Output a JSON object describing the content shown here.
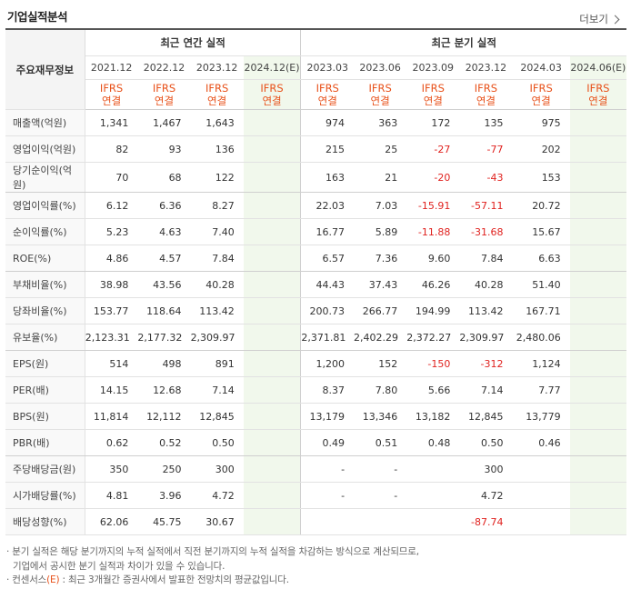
{
  "title": "기업실적분석",
  "more_label": "더보기",
  "header": {
    "corner_label": "주요재무정보",
    "annual_group": "최근 연간 실적",
    "quarter_group": "최근 분기 실적",
    "annual_periods": [
      "2021.12",
      "2022.12",
      "2023.12",
      "2024.12(E)"
    ],
    "quarter_periods": [
      "2023.03",
      "2023.06",
      "2023.09",
      "2023.12",
      "2024.03",
      "2024.06(E)"
    ],
    "ifrs_line1": "IFRS",
    "ifrs_line2": "연결"
  },
  "rows": [
    {
      "label": "매출액(억원)",
      "annual": [
        "1,341",
        "1,467",
        "1,643",
        ""
      ],
      "quarter": [
        "974",
        "363",
        "172",
        "135",
        "975",
        ""
      ]
    },
    {
      "label": "영업이익(억원)",
      "annual": [
        "82",
        "93",
        "136",
        ""
      ],
      "quarter": [
        "215",
        "25",
        "-27",
        "-77",
        "202",
        ""
      ]
    },
    {
      "label": "당기순이익(억원)",
      "annual": [
        "70",
        "68",
        "122",
        ""
      ],
      "quarter": [
        "163",
        "21",
        "-20",
        "-43",
        "153",
        ""
      ]
    },
    {
      "label": "영업이익률(%)",
      "annual": [
        "6.12",
        "6.36",
        "8.27",
        ""
      ],
      "quarter": [
        "22.03",
        "7.03",
        "-15.91",
        "-57.11",
        "20.72",
        ""
      ]
    },
    {
      "label": "순이익률(%)",
      "annual": [
        "5.23",
        "4.63",
        "7.40",
        ""
      ],
      "quarter": [
        "16.77",
        "5.89",
        "-11.88",
        "-31.68",
        "15.67",
        ""
      ]
    },
    {
      "label": "ROE(%)",
      "annual": [
        "4.86",
        "4.57",
        "7.84",
        ""
      ],
      "quarter": [
        "6.57",
        "7.36",
        "9.60",
        "7.84",
        "6.63",
        ""
      ]
    },
    {
      "label": "부채비율(%)",
      "annual": [
        "38.98",
        "43.56",
        "40.28",
        ""
      ],
      "quarter": [
        "44.43",
        "37.43",
        "46.26",
        "40.28",
        "51.40",
        ""
      ]
    },
    {
      "label": "당좌비율(%)",
      "annual": [
        "153.77",
        "118.64",
        "113.42",
        ""
      ],
      "quarter": [
        "200.73",
        "266.77",
        "194.99",
        "113.42",
        "167.71",
        ""
      ]
    },
    {
      "label": "유보율(%)",
      "annual": [
        "2,123.31",
        "2,177.32",
        "2,309.97",
        ""
      ],
      "quarter": [
        "2,371.81",
        "2,402.29",
        "2,372.27",
        "2,309.97",
        "2,480.06",
        ""
      ]
    },
    {
      "label": "EPS(원)",
      "annual": [
        "514",
        "498",
        "891",
        ""
      ],
      "quarter": [
        "1,200",
        "152",
        "-150",
        "-312",
        "1,124",
        ""
      ]
    },
    {
      "label": "PER(배)",
      "annual": [
        "14.15",
        "12.68",
        "7.14",
        ""
      ],
      "quarter": [
        "8.37",
        "7.80",
        "5.66",
        "7.14",
        "7.77",
        ""
      ]
    },
    {
      "label": "BPS(원)",
      "annual": [
        "11,814",
        "12,112",
        "12,845",
        ""
      ],
      "quarter": [
        "13,179",
        "13,346",
        "13,182",
        "12,845",
        "13,779",
        ""
      ]
    },
    {
      "label": "PBR(배)",
      "annual": [
        "0.62",
        "0.52",
        "0.50",
        ""
      ],
      "quarter": [
        "0.49",
        "0.51",
        "0.48",
        "0.50",
        "0.46",
        ""
      ]
    },
    {
      "label": "주당배당금(원)",
      "annual": [
        "350",
        "250",
        "300",
        ""
      ],
      "quarter": [
        "-",
        "-",
        "",
        "300",
        "",
        ""
      ]
    },
    {
      "label": "시가배당률(%)",
      "annual": [
        "4.81",
        "3.96",
        "4.72",
        ""
      ],
      "quarter": [
        "-",
        "-",
        "",
        "4.72",
        "",
        ""
      ]
    },
    {
      "label": "배당성향(%)",
      "annual": [
        "62.06",
        "45.75",
        "30.67",
        ""
      ],
      "quarter": [
        "",
        "",
        "",
        "-87.74",
        "",
        ""
      ]
    }
  ],
  "notes": {
    "line1": "· 분기 실적은 해당 분기까지의 누적 실적에서 직전 분기까지의 누적 실적을 차감하는 방식으로 계산되므로,",
    "line2": "기업에서 공시한 분기 실적과 차이가 있을 수 있습니다.",
    "line3_prefix": "· 컨센서스",
    "line3_mark": "(E)",
    "line3_suffix": " : 최근 3개월간 증권사에서 발표한 전망치의 평균값입니다."
  }
}
